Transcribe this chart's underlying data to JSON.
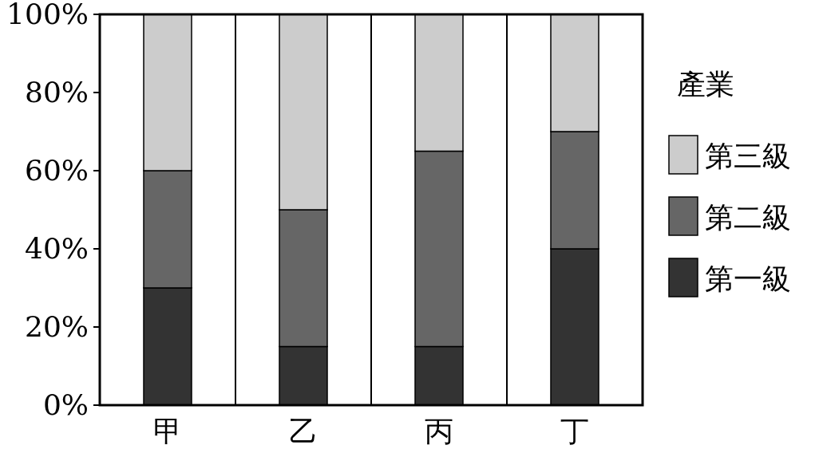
{
  "chart_data": {
    "type": "bar",
    "stacked": true,
    "legend": "right",
    "legend_title": "產業",
    "categories": [
      "甲",
      "乙",
      "丙",
      "丁"
    ],
    "series": [
      {
        "name": "第一級",
        "color": "#333333",
        "values": [
          30,
          15,
          15,
          40
        ]
      },
      {
        "name": "第二級",
        "color": "#666666",
        "values": [
          30,
          35,
          50,
          30
        ]
      },
      {
        "name": "第三級",
        "color": "#cccccc",
        "values": [
          40,
          50,
          35,
          30
        ]
      }
    ],
    "ylim": [
      0,
      100
    ],
    "yticks": [
      {
        "value": 0,
        "label": "0%"
      },
      {
        "value": 20,
        "label": "20%"
      },
      {
        "value": 40,
        "label": "40%"
      },
      {
        "value": 60,
        "label": "60%"
      },
      {
        "value": 80,
        "label": "80%"
      },
      {
        "value": 100,
        "label": "100%"
      }
    ]
  }
}
